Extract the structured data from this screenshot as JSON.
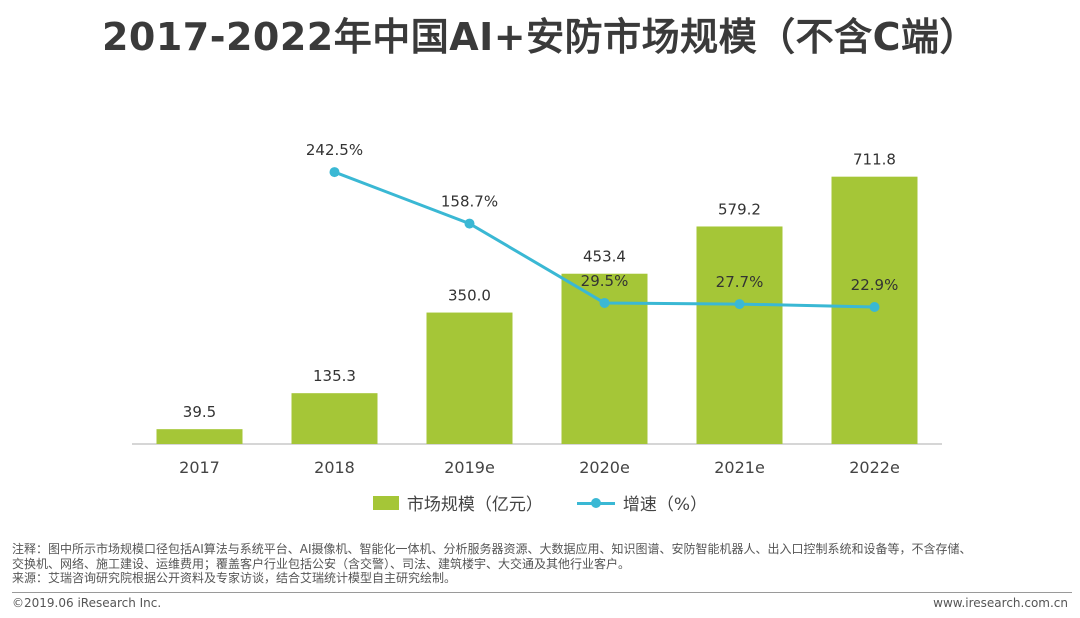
{
  "title": "2017-2022年中国AI+安防市场规模（不含C端）",
  "colors": {
    "bar": "#a5c637",
    "line": "#3ab8d4",
    "axis": "#c8c8c8",
    "label": "#333333"
  },
  "chart_data": {
    "type": "bar",
    "categories": [
      "2017",
      "2018",
      "2019e",
      "2020e",
      "2021e",
      "2022e"
    ],
    "series": [
      {
        "name": "市场规模（亿元）",
        "type": "bar",
        "values": [
          39.5,
          135.3,
          350.0,
          453.4,
          579.2,
          711.8
        ],
        "labels": [
          "39.5",
          "135.3",
          "350.0",
          "453.4",
          "579.2",
          "711.8"
        ]
      },
      {
        "name": "增速（%）",
        "type": "line",
        "values": [
          null,
          242.5,
          158.7,
          29.5,
          27.7,
          22.9
        ],
        "labels": [
          "",
          "242.5%",
          "158.7%",
          "29.5%",
          "27.7%",
          "22.9%"
        ]
      }
    ],
    "bar_ylim": [
      0,
      900
    ],
    "line_ylim": [
      -200,
      350
    ],
    "grid": false,
    "legend": "bottom-center"
  },
  "notes": [
    "注释：图中所示市场规模口径包括AI算法与系统平台、AI摄像机、智能化一体机、分析服务器资源、大数据应用、知识图谱、安防智能机器人、出入口控制系统和设备等，不含存储、",
    "交换机、网络、施工建设、运维费用；覆盖客户行业包括公安（含交警）、司法、建筑楼宇、大交通及其他行业客户。",
    "来源：艾瑞咨询研究院根据公开资料及专家访谈，结合艾瑞统计模型自主研究绘制。"
  ],
  "footer": {
    "copyright": "©2019.06 iResearch Inc.",
    "website": "www.iresearch.com.cn"
  }
}
